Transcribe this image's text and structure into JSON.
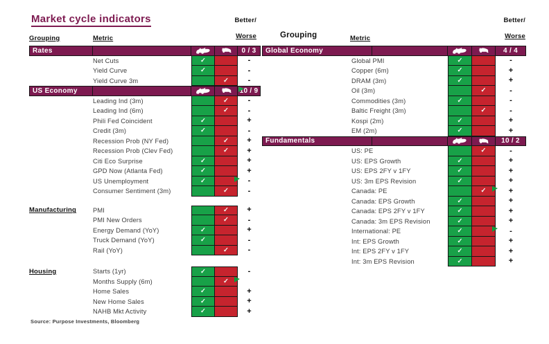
{
  "ui": {
    "left_header": {
      "grouping": "Grouping",
      "metric": "Metric"
    },
    "right_header": {
      "grouping": "Grouping",
      "metric": "Metric"
    },
    "better_worse": {
      "better": "Better/",
      "worse": "Worse"
    },
    "source": "Source: Purpose Investments, Bloomberg",
    "icons": {
      "bull": "bull-icon",
      "bear": "bear-icon",
      "check": "✓",
      "flag": "comment-flag-icon"
    },
    "colors": {
      "maroon": "#7D1A50",
      "green": "#18A148",
      "red": "#C6242E",
      "flag_green": "#0E9C3C"
    }
  },
  "chart_data": {
    "type": "table",
    "title": "Market cycle indicators",
    "legend": [
      "bull",
      "bear"
    ],
    "tables": [
      {
        "side": "left",
        "sections": [
          {
            "name": "Rates",
            "banner": true,
            "score": "0 / 3",
            "flag": false,
            "rows": [
              {
                "metric": "Net Cuts",
                "signal": "bull",
                "bw": "-"
              },
              {
                "metric": "Yield Curve",
                "signal": "bull",
                "bw": "-"
              },
              {
                "metric": "Yield Curve 3m",
                "signal": "bear",
                "bw": "-"
              }
            ]
          },
          {
            "name": "US Economy",
            "banner": true,
            "score": "10 / 9",
            "flag": true,
            "rows": [
              {
                "metric": "Leading Ind (3m)",
                "signal": "bear",
                "bw": "-"
              },
              {
                "metric": "Leading Ind (6m)",
                "signal": "bear",
                "bw": "-"
              },
              {
                "metric": "Phili Fed Coincident",
                "signal": "bull",
                "bw": "+"
              },
              {
                "metric": "Credit (3m)",
                "signal": "bull",
                "bw": "-"
              },
              {
                "metric": "Recession Prob (NY Fed)",
                "signal": "bear",
                "bw": "+"
              },
              {
                "metric": "Recession Prob (Clev Fed)",
                "signal": "bear",
                "bw": "+"
              },
              {
                "metric": "Citi Eco Surprise",
                "signal": "bull",
                "bw": "+"
              },
              {
                "metric": "GPD Now (Atlanta Fed)",
                "signal": "bull",
                "bw": "+"
              },
              {
                "metric": "US Unemployment",
                "signal": "bull",
                "bw": "-",
                "flag": true
              },
              {
                "metric": "Consumer Sentiment (3m)",
                "signal": "bear",
                "bw": "-"
              }
            ]
          },
          {
            "name": "Manufacturing",
            "banner": false,
            "rows": [
              {
                "metric": "PMI",
                "signal": "bear",
                "bw": "+"
              },
              {
                "metric": "PMI New Orders",
                "signal": "bear",
                "bw": "-"
              },
              {
                "metric": "Energy Demand (YoY)",
                "signal": "bull",
                "bw": "+"
              },
              {
                "metric": "Truck Demand (YoY)",
                "signal": "bull",
                "bw": "-"
              },
              {
                "metric": "Rail (YoY)",
                "signal": "bear",
                "bw": "-"
              }
            ]
          },
          {
            "name": "Housing",
            "banner": false,
            "rows": [
              {
                "metric": "Starts (1yr)",
                "signal": "bull",
                "bw": "-"
              },
              {
                "metric": "Months Supply (6m)",
                "signal": "bear",
                "bw": "",
                "flag": true
              },
              {
                "metric": "Home Sales",
                "signal": "bull",
                "bw": "+"
              },
              {
                "metric": "New Home Sales",
                "signal": "bull",
                "bw": "+"
              },
              {
                "metric": "NAHB Mkt Activity",
                "signal": "bull",
                "bw": "+"
              }
            ]
          }
        ]
      },
      {
        "side": "right",
        "sections": [
          {
            "name": "Global Economy",
            "banner": true,
            "score": "4 / 4",
            "flag": false,
            "rows": [
              {
                "metric": "Global PMI",
                "signal": "bull",
                "bw": "-"
              },
              {
                "metric": "Copper (6m)",
                "signal": "bull",
                "bw": "+"
              },
              {
                "metric": "DRAM (3m)",
                "signal": "bull",
                "bw": "+"
              },
              {
                "metric": "Oil (3m)",
                "signal": "bear",
                "bw": "-"
              },
              {
                "metric": "Commodities (3m)",
                "signal": "bull",
                "bw": "-"
              },
              {
                "metric": "Baltic Freight (3m)",
                "signal": "bear",
                "bw": "-"
              },
              {
                "metric": "Kospi (2m)",
                "signal": "bull",
                "bw": "+"
              },
              {
                "metric": "EM (2m)",
                "signal": "bull",
                "bw": "+"
              }
            ]
          },
          {
            "name": "Fundamentals",
            "banner": true,
            "score": "10 / 2",
            "flag": false,
            "rows": [
              {
                "metric": "US: PE",
                "signal": "bear",
                "bw": "-"
              },
              {
                "metric": "US: EPS Growth",
                "signal": "bull",
                "bw": "+"
              },
              {
                "metric": "US: EPS 2FY v 1FY",
                "signal": "bull",
                "bw": "+"
              },
              {
                "metric": "US: 3m EPS Revision",
                "signal": "bull",
                "bw": "+"
              },
              {
                "metric": "Canada: PE",
                "signal": "bear",
                "bw": "+",
                "flag": true
              },
              {
                "metric": "Canada: EPS Growth",
                "signal": "bull",
                "bw": "+"
              },
              {
                "metric": "Canada: EPS 2FY v 1FY",
                "signal": "bull",
                "bw": "+"
              },
              {
                "metric": "Canada: 3m EPS Revision",
                "signal": "bull",
                "bw": "+"
              },
              {
                "metric": "International: PE",
                "signal": "bull",
                "bw": "-",
                "flag": true
              },
              {
                "metric": "Int: EPS Growth",
                "signal": "bull",
                "bw": "+"
              },
              {
                "metric": "Int: EPS 2FY v 1FY",
                "signal": "bull",
                "bw": "+"
              },
              {
                "metric": "Int: 3m EPS Revision",
                "signal": "bull",
                "bw": "+"
              }
            ]
          }
        ]
      }
    ]
  }
}
